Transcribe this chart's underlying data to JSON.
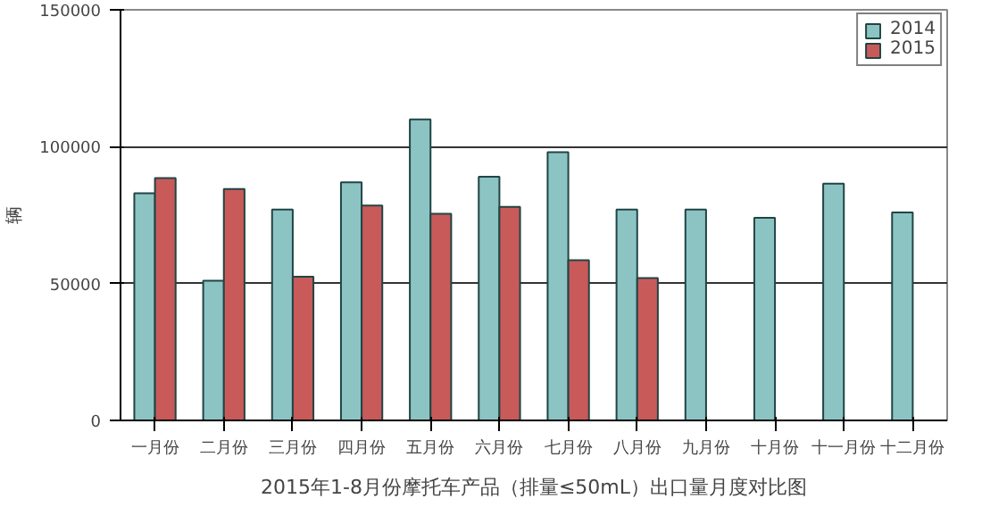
{
  "chart_data": {
    "type": "bar",
    "title": "2015年1-8月份摩托车产品（排量≤50mL）出口量月度对比图",
    "ylabel": "辆",
    "categories": [
      "一月份",
      "二月份",
      "三月份",
      "四月份",
      "五月份",
      "六月份",
      "七月份",
      "八月份",
      "九月份",
      "十月份",
      "十一月份",
      "十二月份"
    ],
    "series": [
      {
        "name": "2014",
        "color": "#8cc4c4",
        "values": [
          83000,
          51000,
          77000,
          87000,
          110000,
          89000,
          98000,
          77000,
          77000,
          74000,
          86500,
          76000
        ]
      },
      {
        "name": "2015",
        "color": "#c85a5a",
        "values": [
          88500,
          84500,
          52500,
          78500,
          75500,
          78000,
          58500,
          52000,
          null,
          null,
          null,
          null
        ]
      }
    ],
    "ylim": [
      0,
      150000
    ],
    "yticks": [
      0,
      50000,
      100000,
      150000
    ],
    "grid": "y",
    "legend": "top right"
  }
}
